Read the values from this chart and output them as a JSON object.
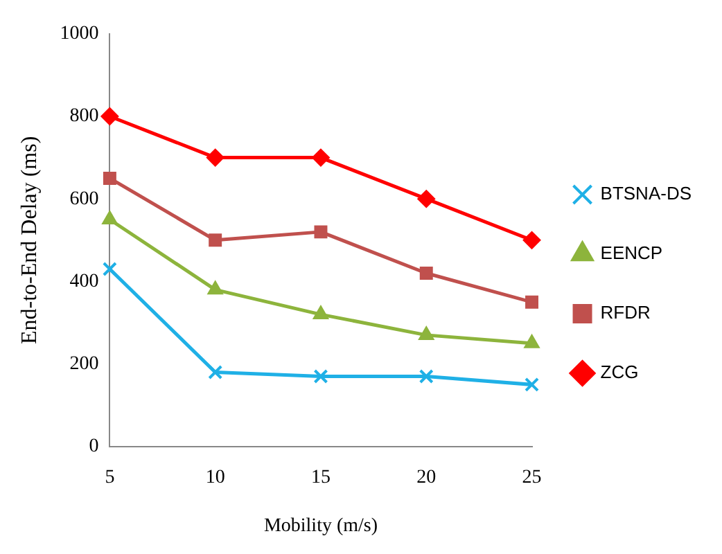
{
  "chart_data": {
    "type": "line",
    "xlabel": "Mobility (m/s)",
    "ylabel": "End-to-End Delay (ms)",
    "categories": [
      "5",
      "10",
      "15",
      "20",
      "25"
    ],
    "ylim": [
      0,
      1000
    ],
    "yticks": [
      0,
      200,
      400,
      600,
      800,
      1000
    ],
    "grid": false,
    "legend": "right",
    "series": [
      {
        "name": "BTSNA-DS",
        "color": "#1fb0e6",
        "marker": "cross",
        "values": [
          430,
          180,
          170,
          170,
          150
        ]
      },
      {
        "name": "EENCP",
        "color": "#8db43c",
        "marker": "triangle",
        "values": [
          550,
          380,
          320,
          270,
          250
        ]
      },
      {
        "name": "RFDR",
        "color": "#c0504d",
        "marker": "square",
        "values": [
          650,
          500,
          520,
          420,
          350
        ]
      },
      {
        "name": "ZCG",
        "color": "#ff0000",
        "marker": "diamond",
        "values": [
          800,
          700,
          700,
          600,
          500
        ]
      }
    ]
  }
}
